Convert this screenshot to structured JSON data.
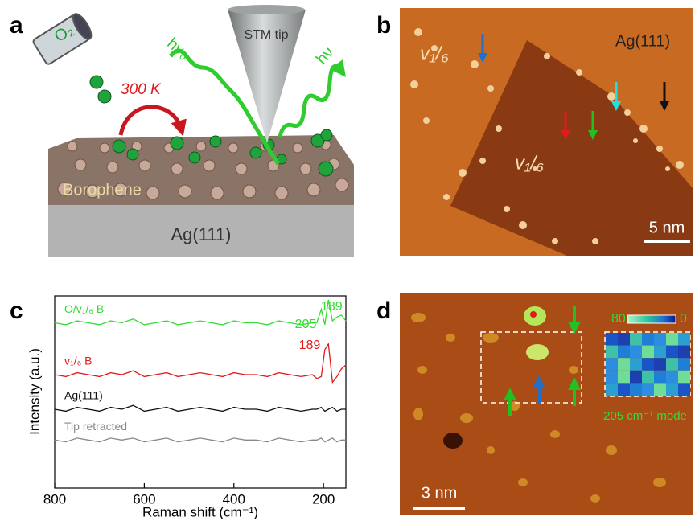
{
  "panel_labels": [
    "a",
    "b",
    "c",
    "d"
  ],
  "panel_a": {
    "o2": "O₂",
    "temperature": "300 K",
    "incident_light": "hν₀",
    "tip": "STM tip",
    "scattered_light": "hν",
    "layer": "Borophene",
    "substrate": "Ag(111)"
  },
  "panel_b": {
    "phase_upper": "v₁/₆",
    "phase_center": "v₁/₆",
    "substrate": "Ag(111)",
    "scale_bar": "5 nm"
  },
  "chart_data": {
    "type": "line",
    "xlabel": "Raman shift (cm⁻¹)",
    "ylabel": "Intensity (a.u.)",
    "x": [
      800,
      775,
      750,
      725,
      700,
      675,
      650,
      625,
      600,
      575,
      550,
      525,
      500,
      475,
      450,
      425,
      400,
      375,
      350,
      325,
      300,
      275,
      250,
      225,
      215,
      205,
      197,
      189,
      180,
      170,
      160,
      150
    ],
    "xlim": [
      800,
      150
    ],
    "xticks": [
      800,
      600,
      400,
      200
    ],
    "ylim": [
      0,
      10
    ],
    "series": [
      {
        "name": "O/v₁/₆ B",
        "color": "#33dd33",
        "values": [
          8.6,
          8.5,
          8.7,
          8.6,
          8.5,
          8.7,
          8.6,
          8.8,
          8.5,
          8.6,
          8.7,
          8.5,
          8.6,
          8.7,
          8.6,
          8.5,
          8.7,
          8.6,
          8.6,
          8.5,
          8.7,
          8.6,
          8.5,
          8.6,
          8.6,
          9.3,
          8.5,
          9.8,
          8.7,
          8.9,
          9.0,
          8.7
        ]
      },
      {
        "name": "v₁/₆ B",
        "color": "#e31a1c",
        "values": [
          5.9,
          5.8,
          6.0,
          5.9,
          5.8,
          6.0,
          5.9,
          6.1,
          5.8,
          5.9,
          6.0,
          5.8,
          5.9,
          6.0,
          5.9,
          5.8,
          6.0,
          5.9,
          5.9,
          5.8,
          6.0,
          5.9,
          5.8,
          5.9,
          5.7,
          5.8,
          7.2,
          7.5,
          5.5,
          5.8,
          6.2,
          6.4
        ]
      },
      {
        "name": "Ag(111)",
        "color": "#111111",
        "values": [
          4.1,
          4.0,
          4.2,
          4.1,
          4.0,
          4.2,
          4.1,
          4.3,
          4.0,
          4.1,
          4.2,
          4.0,
          4.1,
          4.2,
          4.1,
          4.0,
          4.2,
          4.1,
          4.1,
          4.0,
          4.2,
          4.1,
          4.0,
          4.1,
          4.1,
          4.2,
          4.0,
          4.1,
          4.2,
          4.0,
          4.1,
          4.1
        ]
      },
      {
        "name": "Tip retracted",
        "color": "#888888",
        "values": [
          2.5,
          2.4,
          2.6,
          2.5,
          2.4,
          2.6,
          2.5,
          2.6,
          2.4,
          2.5,
          2.6,
          2.4,
          2.5,
          2.6,
          2.5,
          2.4,
          2.6,
          2.5,
          2.5,
          2.4,
          2.6,
          2.5,
          2.4,
          2.5,
          2.5,
          2.6,
          2.4,
          2.5,
          2.6,
          2.4,
          2.5,
          2.5
        ]
      }
    ],
    "annotations": [
      {
        "value": 189,
        "color": "#33dd33"
      },
      {
        "value": 205,
        "color": "#33dd33"
      },
      {
        "value": 189,
        "color": "#e31a1c"
      }
    ]
  },
  "panel_d": {
    "colorbar_max": 80,
    "colorbar_min": 0,
    "map_label": "205 cm⁻¹ mode",
    "scale_bar": "3 nm"
  }
}
